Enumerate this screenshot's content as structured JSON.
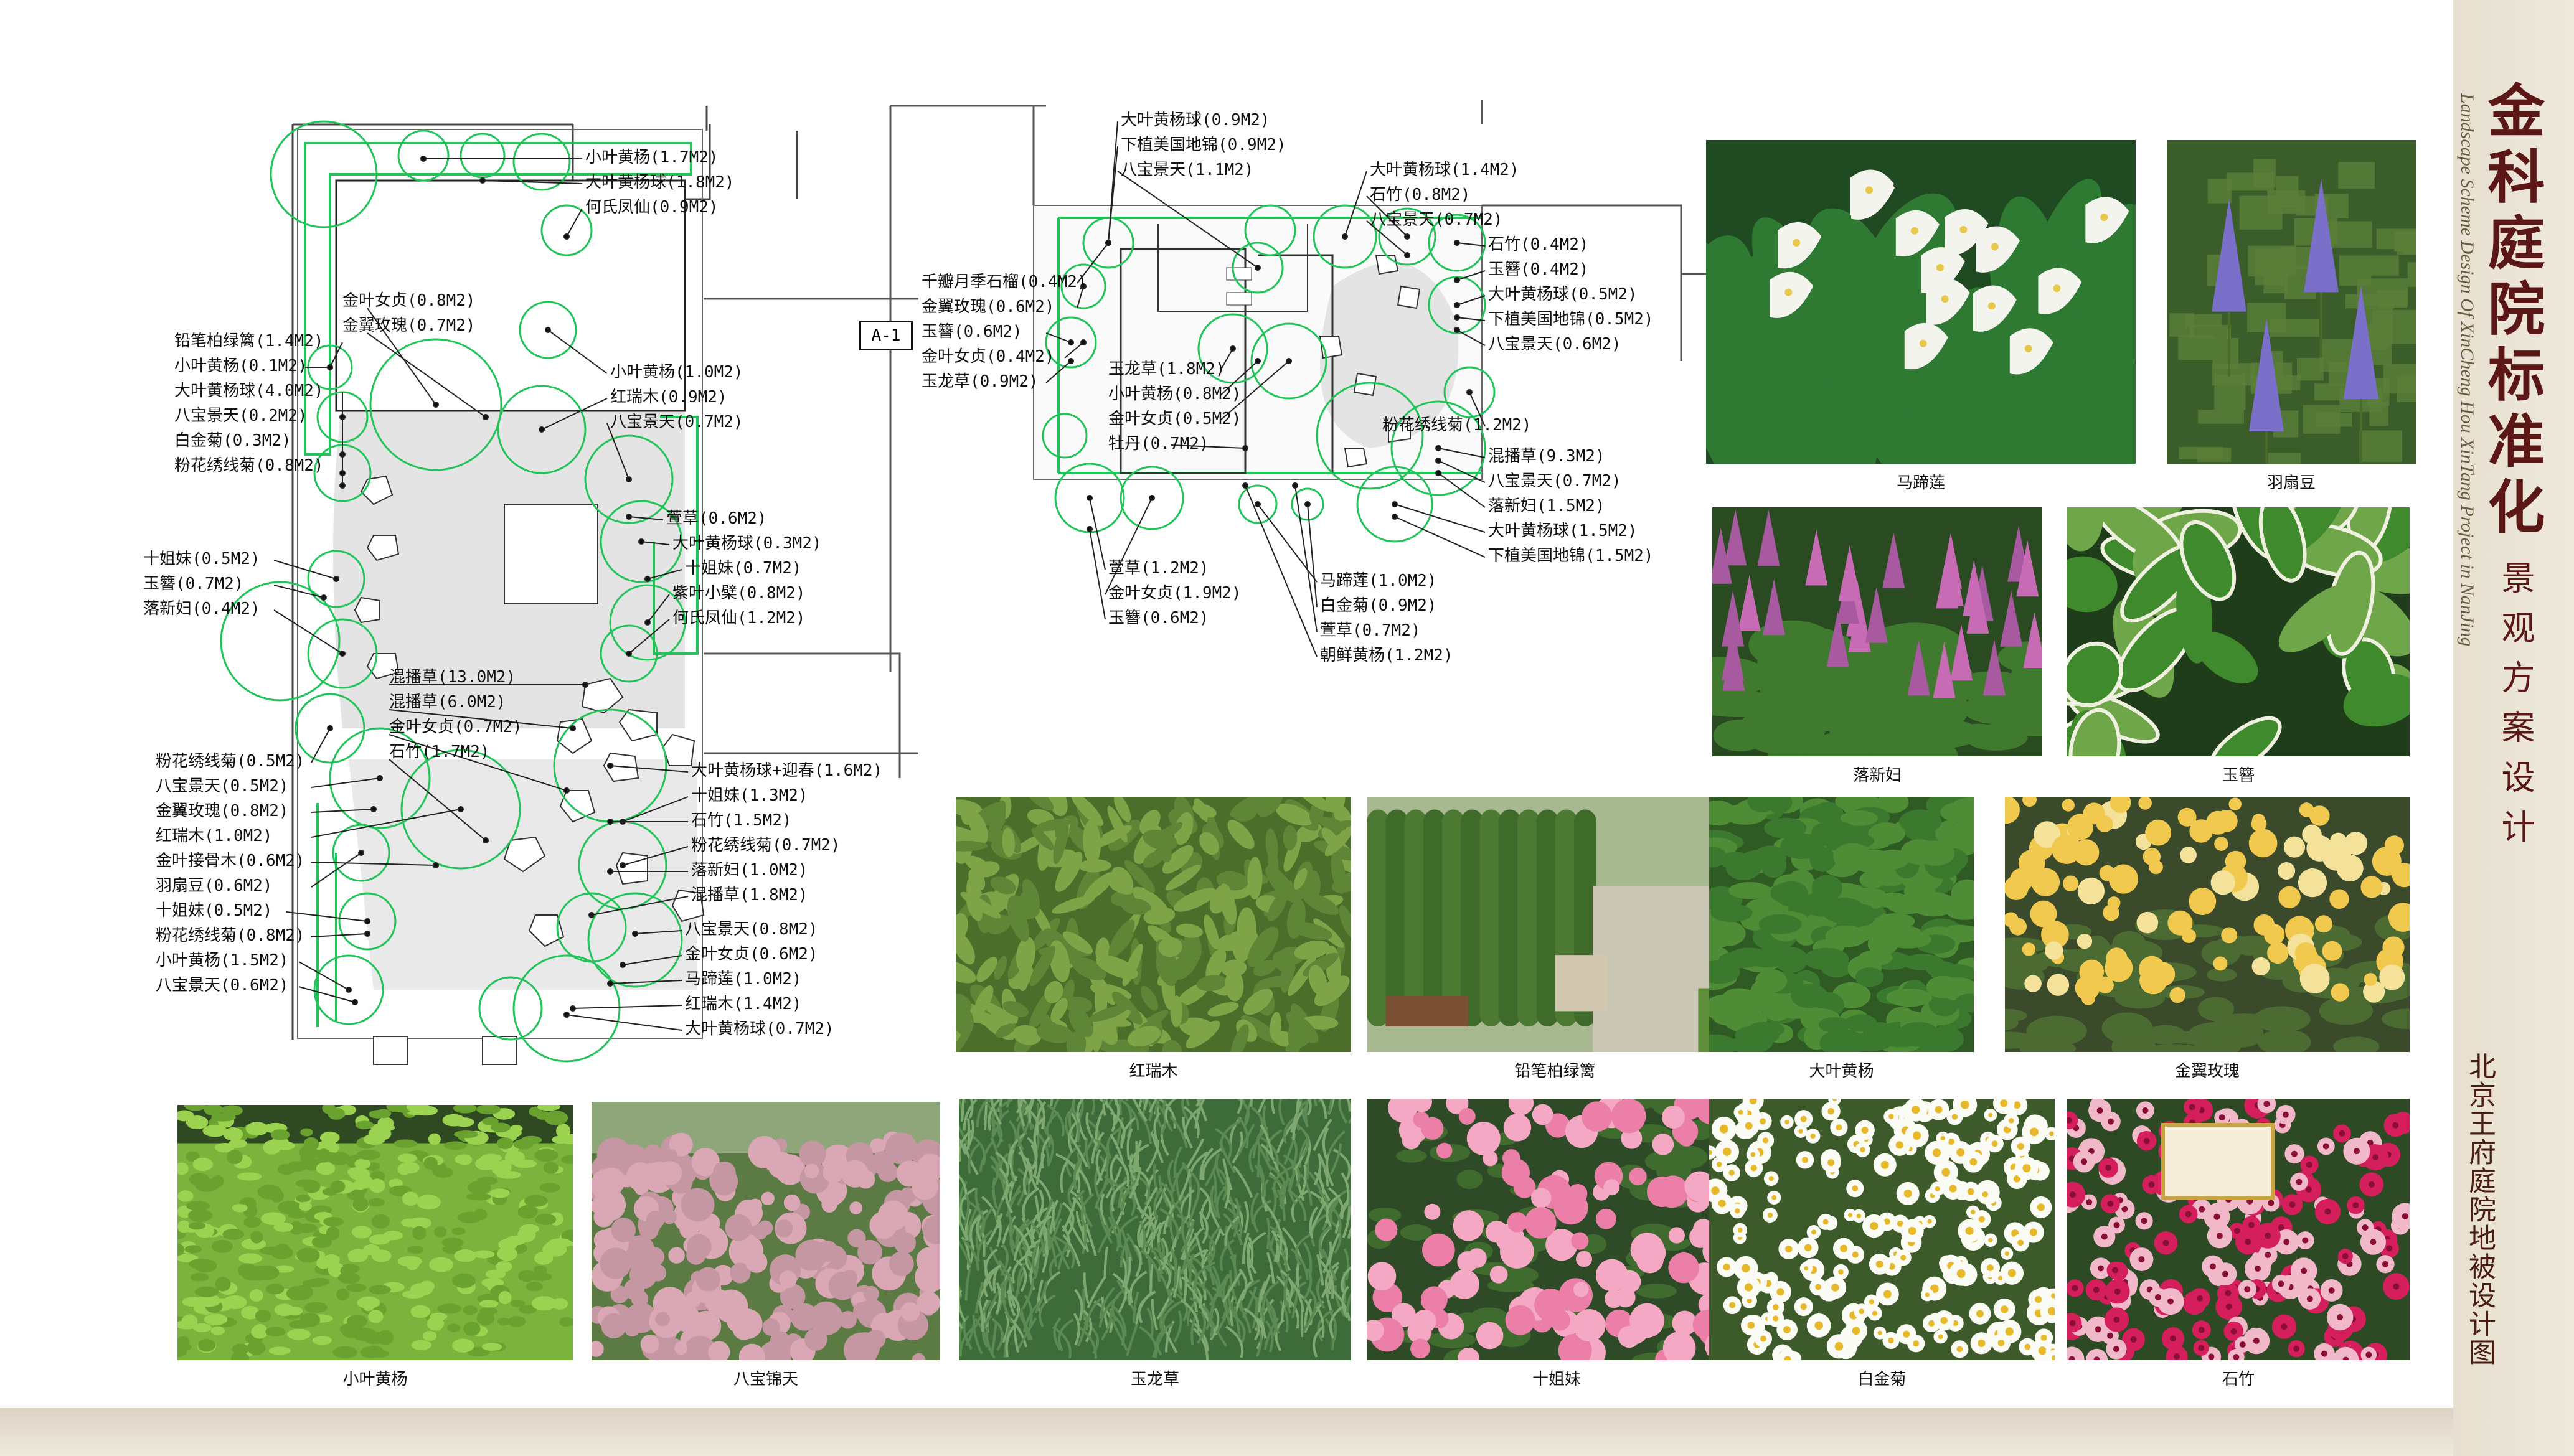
{
  "title": {
    "main": "金科庭院标准化",
    "sub": "景观方案设计",
    "en": "Landscape Scheme Design Of XinCheng Hou XinTang Project in NanJing",
    "side": "北京王府庭院地被设计图"
  },
  "colors": {
    "plant": "#22c45a",
    "line": "#222222",
    "paving": "#d9d9d9"
  },
  "plan_left": {
    "right_labels": [
      "小叶黄杨(1.7M2)",
      "大叶黄杨球(1.8M2)",
      "何氏凤仙(0.9M2)",
      "小叶黄杨(1.0M2)",
      "红瑞木(0.9M2)",
      "八宝景天(0.7M2)",
      "萱草(0.6M2)",
      "大叶黄杨球(0.3M2)",
      "十姐妹(0.7M2)",
      "紫叶小檗(0.8M2)",
      "何氏凤仙(1.2M2)",
      "大叶黄杨球+迎春(1.6M2)",
      "十姐妹(1.3M2)",
      "石竹(1.5M2)",
      "粉花绣线菊(0.7M2)",
      "落新妇(1.0M2)",
      "混播草(1.8M2)",
      "八宝景天(0.8M2)",
      "金叶女贞(0.6M2)",
      "马蹄莲(1.0M2)",
      "红瑞木(1.4M2)",
      "大叶黄杨球(0.7M2)"
    ],
    "left_labels": [
      "铅笔柏绿篱(1.4M2)",
      "小叶黄杨(0.1M2)",
      "大叶黄杨球(4.0M2)",
      "八宝景天(0.2M2)",
      "白金菊(0.3M2)",
      "粉花绣线菊(0.8M2)",
      "十姐妹(0.5M2)",
      "玉簪(0.7M2)",
      "落新妇(0.4M2)",
      "粉花绣线菊(0.5M2)",
      "八宝景天(0.5M2)",
      "金翼玫瑰(0.8M2)",
      "红瑞木(1.0M2)",
      "金叶接骨木(0.6M2)",
      "羽扇豆(0.6M2)",
      "十姐妹(0.5M2)",
      "粉花绣线菊(0.8M2)",
      "小叶黄杨(1.5M2)",
      "八宝景天(0.6M2)"
    ],
    "inner_labels": [
      "金叶女贞(0.8M2)",
      "金翼玫瑰(0.7M2)",
      "混播草(13.0M2)",
      "混播草(6.0M2)",
      "金叶女贞(0.7M2)",
      "石竹(1.7M2)"
    ]
  },
  "plan_right": {
    "tag": "A-1",
    "top_labels": [
      "大叶黄杨球(0.9M2)",
      "下植美国地锦(0.9M2)",
      "八宝景天(1.1M2)",
      "大叶黄杨球(1.4M2)",
      "石竹(0.8M2)",
      "八宝景天(0.7M2)"
    ],
    "left_labels": [
      "千瓣月季石榴(0.4M2)",
      "金翼玫瑰(0.6M2)",
      "玉簪(0.6M2)",
      "金叶女贞(0.4M2)",
      "玉龙草(0.9M2)"
    ],
    "mid_labels": [
      "玉龙草(1.8M2)",
      "小叶黄杨(0.8M2)",
      "金叶女贞(0.5M2)",
      "牡丹(0.7M2)"
    ],
    "right_labels": [
      "石竹(0.4M2)",
      "玉簪(0.4M2)",
      "大叶黄杨球(0.5M2)",
      "下植美国地锦(0.5M2)",
      "八宝景天(0.6M2)",
      "粉花绣线菊(1.2M2)",
      "混播草(9.3M2)",
      "八宝景天(0.7M2)",
      "落新妇(1.5M2)",
      "大叶黄杨球(1.5M2)",
      "下植美国地锦(1.5M2)"
    ],
    "bottom_labels": [
      "萱草(1.2M2)",
      "金叶女贞(1.9M2)",
      "玉簪(0.6M2)",
      "马蹄莲(1.0M2)",
      "白金菊(0.9M2)",
      "萱草(0.7M2)",
      "朝鲜黄杨(1.2M2)"
    ]
  },
  "photos": [
    {
      "caption": "马蹄莲",
      "kind": "calla"
    },
    {
      "caption": "羽扇豆",
      "kind": "lupin"
    },
    {
      "caption": "落新妇",
      "kind": "astilbe"
    },
    {
      "caption": "玉簪",
      "kind": "hosta"
    },
    {
      "caption": "红瑞木",
      "kind": "dogwood"
    },
    {
      "caption": "铅笔柏绿篱",
      "kind": "hedge"
    },
    {
      "caption": "大叶黄杨",
      "kind": "euonymus"
    },
    {
      "caption": "金翼玫瑰",
      "kind": "yrose"
    },
    {
      "caption": "小叶黄杨",
      "kind": "boxwood"
    },
    {
      "caption": "八宝锦天",
      "kind": "sedum"
    },
    {
      "caption": "玉龙草",
      "kind": "mondo"
    },
    {
      "caption": "十姐妹",
      "kind": "prose"
    },
    {
      "caption": "白金菊",
      "kind": "daisy"
    },
    {
      "caption": "石竹",
      "kind": "dianthus"
    }
  ]
}
